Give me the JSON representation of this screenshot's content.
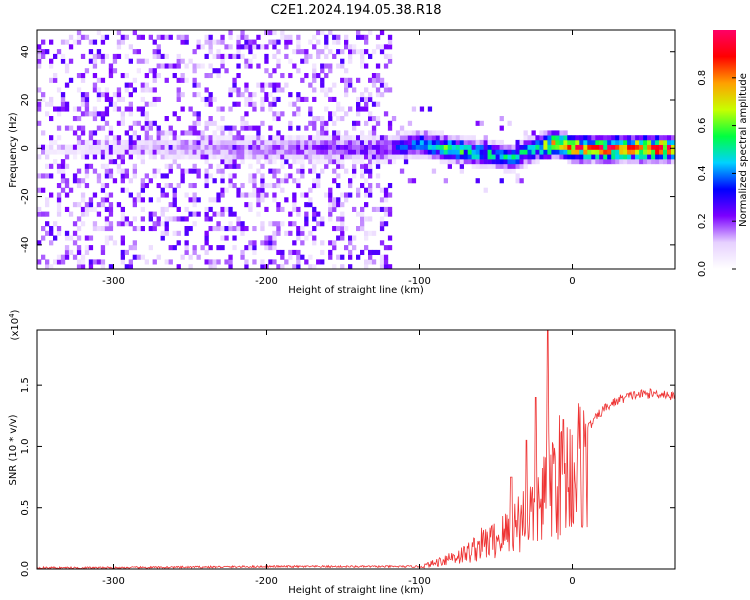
{
  "title": "C2E1.2024.194.05.38.R18",
  "chart_data": [
    {
      "type": "heatmap",
      "xlabel": "Height of straight line (km)",
      "ylabel": "Frequency (Hz)",
      "xlim": [
        -350,
        67
      ],
      "ylim": [
        -50,
        49
      ],
      "xticks": [
        -300,
        -200,
        -100,
        0
      ],
      "xtick_labels": [
        "-300",
        "-200",
        "-100",
        "0"
      ],
      "yticks": [
        -40,
        -20,
        0,
        20,
        40
      ],
      "ytick_labels": [
        "-40",
        "-20",
        "0",
        "20",
        "40"
      ],
      "colorbar": {
        "label": "Normalized spectral amplitude",
        "range": [
          0,
          1
        ],
        "ticks": [
          0.0,
          0.2,
          0.4,
          0.6,
          0.8
        ],
        "tick_labels": [
          "0.0",
          "0.2",
          "0.4",
          "0.6",
          "0.8"
        ],
        "colormap": [
          "#ffffff",
          "#e6d0ff",
          "#7b00ff",
          "#0000ff",
          "#00d2ff",
          "#00ff40",
          "#c8ff00",
          "#ffa000",
          "#ff0000",
          "#ff0066"
        ]
      },
      "ridge": {
        "x": [
          -350,
          -120,
          -100,
          -80,
          -60,
          -40,
          -25,
          -10,
          0,
          67
        ],
        "frequency": [
          0,
          0,
          2,
          0,
          -2,
          -4,
          0,
          2,
          0,
          0
        ],
        "peak_amplitude": [
          0.05,
          0.25,
          0.45,
          0.55,
          0.5,
          0.45,
          0.5,
          0.85,
          0.85,
          0.85
        ]
      },
      "grid": false
    },
    {
      "type": "line",
      "xlabel": "Height of straight line (km)",
      "ylabel": "SNR (10 * v/v)",
      "y_multiplier": "(x10",
      "y_multiplier_exp": "4",
      "y_multiplier_close": ")",
      "xlim": [
        -350,
        67
      ],
      "ylim": [
        0,
        1.95
      ],
      "xticks": [
        -300,
        -200,
        -100,
        0
      ],
      "xtick_labels": [
        "-300",
        "-200",
        "-100",
        "0"
      ],
      "yticks": [
        0.0,
        0.5,
        1.0,
        1.5
      ],
      "ytick_labels": [
        "0.0",
        "0.5",
        "1.0",
        "1.5"
      ],
      "series": [
        {
          "color": "#ee3333",
          "x": [
            -350,
            -300,
            -250,
            -200,
            -150,
            -120,
            -100,
            -90,
            -80,
            -70,
            -60,
            -50,
            -40,
            -35,
            -30,
            -25,
            -20,
            -15,
            -10,
            -5,
            0,
            10,
            20,
            30,
            40,
            50,
            60,
            67
          ],
          "y": [
            0.01,
            0.01,
            0.015,
            0.02,
            0.02,
            0.02,
            0.02,
            0.06,
            0.12,
            0.15,
            0.25,
            0.3,
            0.4,
            0.5,
            0.55,
            0.6,
            0.7,
            0.9,
            0.95,
            0.95,
            1.0,
            1.15,
            1.3,
            1.38,
            1.42,
            1.43,
            1.43,
            1.4
          ],
          "spikes": [
            {
              "x": -40,
              "y": 0.75
            },
            {
              "x": -30,
              "y": 1.05
            },
            {
              "x": -24,
              "y": 1.4
            },
            {
              "x": -16,
              "y": 1.95
            },
            {
              "x": -6,
              "y": 1.22
            }
          ]
        }
      ]
    }
  ]
}
